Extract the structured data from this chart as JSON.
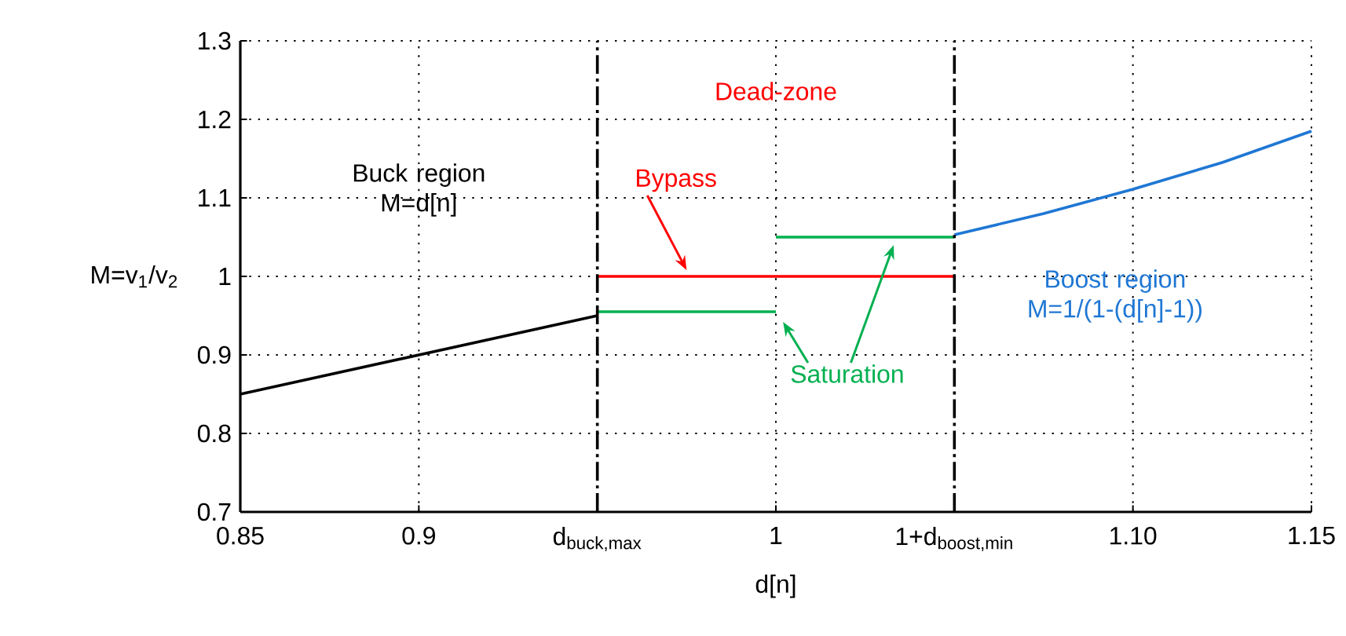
{
  "chart_data": {
    "type": "line",
    "xlabel": "d[n]",
    "ylabel": "M=v$_{1}$/v$_{2}$",
    "xlim": [
      0.85,
      1.15
    ],
    "ylim": [
      0.7,
      1.3
    ],
    "xticks": [
      0.85,
      0.9,
      {
        "value": 0.95,
        "label": "d$_{buck,max}$"
      },
      1,
      {
        "value": 1.05,
        "label": "1+d$_{boost,min}$"
      },
      {
        "value": 1.1,
        "label": "1.10"
      },
      1.15
    ],
    "yticks": [
      0.7,
      0.8,
      0.9,
      1,
      1.1,
      1.2,
      1.3
    ],
    "grid": true,
    "line_style": "solid",
    "marker": "none",
    "series": [
      {
        "name": "Buck region M=d[n]",
        "color": "#000000",
        "x": [
          0.85,
          0.95
        ],
        "values": [
          0.85,
          0.95
        ]
      },
      {
        "name": "Bypass",
        "color": "#ff0000",
        "x": [
          0.95,
          1.05
        ],
        "values": [
          1,
          1
        ]
      },
      {
        "name": "Saturation",
        "color": "#00b050",
        "x": [
          0.95,
          1.0
        ],
        "values": [
          0.955,
          0.955
        ]
      },
      {
        "color": "#00b050",
        "x": [
          1.0,
          1.05
        ],
        "values": [
          1.05,
          1.05
        ]
      },
      {
        "name": "Boost region M=1/(1-(d[n]-1))",
        "color": "#1f77d4",
        "x": [
          1.05,
          1.075,
          1.1,
          1.125,
          1.15
        ],
        "values": [
          1.053,
          1.08,
          1.111,
          1.145,
          1.185
        ]
      }
    ],
    "ref_lines": [
      {
        "axis": "x",
        "value": 0.95,
        "color": "#000000",
        "line_style": "dashdot"
      },
      {
        "axis": "x",
        "value": 1.05,
        "color": "#000000",
        "line_style": "dashdot"
      }
    ],
    "annotations": [
      "Dead-zone"
    ]
  }
}
